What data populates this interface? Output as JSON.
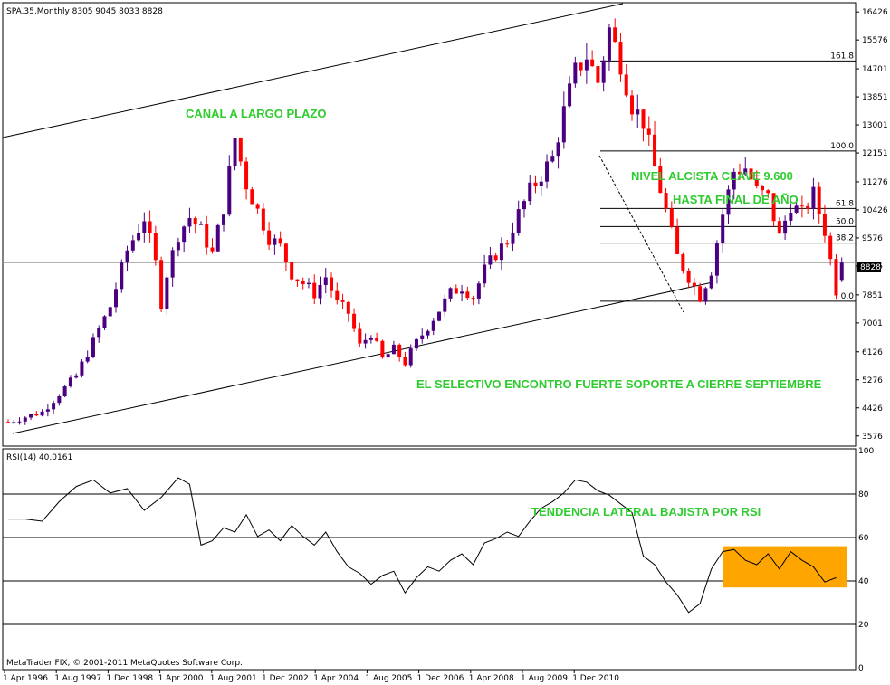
{
  "header": {
    "main_title": "SPA.35,Monthly  8305 9045 8033 8828",
    "rsi_title": "RSI(14) 40.0161",
    "copyright": "MetaTrader FIX, © 2001-2011 MetaQuotes Software Corp."
  },
  "colors": {
    "bull": "#4b0082",
    "bear": "#ff0000",
    "annotation": "#2ecc2e",
    "rsi_box": "#ffa500",
    "line": "#000000"
  },
  "annotations": {
    "canal": "CANAL A LARGO PLAZO",
    "nivel": "NIVEL ALCISTA CLAVE 9.600",
    "hasta": "HASTA FINAL DE AÑO",
    "selectivo": "EL SELECTIVO ENCONTRO FUERTE SOPORTE A CIERRE SEPTIEMBRE",
    "tendencia": "TENDENCIA LATERAL BAJISTA POR RSI"
  },
  "current_price_label": "8828",
  "fib_levels": [
    {
      "label": "161.8",
      "value": 14940
    },
    {
      "label": "100.0",
      "value": 12210
    },
    {
      "label": "61.8",
      "value": 10470
    },
    {
      "label": "50.0",
      "value": 9920
    },
    {
      "label": "38.2",
      "value": 9420
    },
    {
      "label": "0.0",
      "value": 7660
    }
  ],
  "chart_data": {
    "type": "candlestick",
    "title": "SPA.35,Monthly",
    "ohlc_header": [
      8305,
      9045,
      8033,
      8828
    ],
    "price_ticks": [
      "16426",
      "15576",
      "14701",
      "13851",
      "13001",
      "12151",
      "11276",
      "10426",
      "9576",
      "8726",
      "7851",
      "7001",
      "6126",
      "5276",
      "4426",
      "3576"
    ],
    "x_ticks": [
      "1 Apr 1996",
      "1 Aug 1997",
      "1 Dec 1998",
      "1 Apr 2000",
      "1 Aug 2001",
      "1 Dec 2002",
      "1 Apr 2004",
      "1 Aug 2005",
      "1 Dec 2006",
      "1 Apr 2008",
      "1 Aug 2009",
      "1 Dec 2010"
    ],
    "ylim": [
      3350,
      16650
    ],
    "close_path": [
      [
        0,
        4000
      ],
      [
        6,
        4300
      ],
      [
        12,
        5400
      ],
      [
        18,
        7500
      ],
      [
        21,
        9200
      ],
      [
        24,
        10200
      ],
      [
        26,
        8800
      ],
      [
        27,
        7600
      ],
      [
        28,
        8500
      ],
      [
        30,
        9700
      ],
      [
        32,
        10200
      ],
      [
        34,
        9800
      ],
      [
        36,
        9100
      ],
      [
        38,
        10500
      ],
      [
        40,
        12600
      ],
      [
        42,
        11200
      ],
      [
        44,
        10400
      ],
      [
        46,
        9600
      ],
      [
        48,
        9300
      ],
      [
        50,
        8500
      ],
      [
        52,
        8200
      ],
      [
        54,
        7900
      ],
      [
        56,
        8400
      ],
      [
        58,
        7600
      ],
      [
        60,
        7300
      ],
      [
        62,
        6300
      ],
      [
        64,
        6700
      ],
      [
        66,
        5900
      ],
      [
        68,
        6200
      ],
      [
        70,
        5800
      ],
      [
        72,
        6400
      ],
      [
        74,
        6900
      ],
      [
        76,
        7400
      ],
      [
        78,
        7900
      ],
      [
        80,
        8100
      ],
      [
        82,
        7800
      ],
      [
        84,
        8600
      ],
      [
        86,
        9100
      ],
      [
        88,
        9500
      ],
      [
        90,
        10300
      ],
      [
        92,
        11000
      ],
      [
        94,
        11500
      ],
      [
        96,
        12000
      ],
      [
        98,
        13400
      ],
      [
        100,
        14600
      ],
      [
        102,
        15100
      ],
      [
        104,
        14300
      ],
      [
        106,
        15900
      ],
      [
        108,
        14900
      ],
      [
        110,
        13600
      ],
      [
        112,
        13100
      ],
      [
        114,
        11700
      ],
      [
        116,
        10400
      ],
      [
        118,
        9000
      ],
      [
        120,
        8400
      ],
      [
        122,
        7800
      ],
      [
        124,
        8600
      ],
      [
        126,
        10300
      ],
      [
        128,
        11600
      ],
      [
        130,
        11700
      ],
      [
        132,
        11000
      ],
      [
        134,
        10800
      ],
      [
        136,
        9600
      ],
      [
        138,
        10600
      ],
      [
        140,
        10300
      ],
      [
        142,
        10900
      ],
      [
        144,
        9800
      ],
      [
        146,
        8000
      ],
      [
        147,
        8828
      ]
    ],
    "rsi": {
      "title": "RSI(14)",
      "value": 40.0161,
      "levels": [
        80,
        60,
        40,
        20
      ],
      "ticks": [
        "100",
        "80",
        "60",
        "40",
        "20",
        "0"
      ],
      "ylim": [
        0,
        100
      ],
      "series": [
        [
          0,
          67
        ],
        [
          3,
          70
        ],
        [
          6,
          66
        ],
        [
          9,
          78
        ],
        [
          12,
          82
        ],
        [
          15,
          88
        ],
        [
          18,
          79
        ],
        [
          21,
          84
        ],
        [
          24,
          71
        ],
        [
          27,
          80
        ],
        [
          30,
          86
        ],
        [
          32,
          83
        ],
        [
          34,
          55
        ],
        [
          36,
          57
        ],
        [
          38,
          63
        ],
        [
          40,
          61
        ],
        [
          42,
          69
        ],
        [
          44,
          59
        ],
        [
          46,
          62
        ],
        [
          48,
          57
        ],
        [
          50,
          64
        ],
        [
          52,
          59
        ],
        [
          54,
          55
        ],
        [
          56,
          61
        ],
        [
          58,
          52
        ],
        [
          60,
          45
        ],
        [
          62,
          42
        ],
        [
          64,
          37
        ],
        [
          66,
          41
        ],
        [
          68,
          43
        ],
        [
          70,
          33
        ],
        [
          72,
          40
        ],
        [
          74,
          45
        ],
        [
          76,
          43
        ],
        [
          78,
          48
        ],
        [
          80,
          51
        ],
        [
          82,
          46
        ],
        [
          84,
          56
        ],
        [
          86,
          58
        ],
        [
          88,
          61
        ],
        [
          90,
          59
        ],
        [
          92,
          66
        ],
        [
          94,
          72
        ],
        [
          96,
          75
        ],
        [
          98,
          79
        ],
        [
          100,
          85
        ],
        [
          102,
          84
        ],
        [
          104,
          80
        ],
        [
          106,
          78
        ],
        [
          108,
          74
        ],
        [
          110,
          70
        ],
        [
          112,
          50
        ],
        [
          114,
          46
        ],
        [
          116,
          38
        ],
        [
          118,
          32
        ],
        [
          120,
          24
        ],
        [
          122,
          28
        ],
        [
          124,
          44
        ],
        [
          126,
          52
        ],
        [
          128,
          53
        ],
        [
          130,
          48
        ],
        [
          132,
          46
        ],
        [
          134,
          51
        ],
        [
          136,
          44
        ],
        [
          138,
          52
        ],
        [
          140,
          48
        ],
        [
          142,
          45
        ],
        [
          144,
          38
        ],
        [
          146,
          40
        ]
      ]
    },
    "rsi_box": {
      "x0": 126,
      "x1": 148,
      "y0": 37,
      "y1": 56
    }
  }
}
